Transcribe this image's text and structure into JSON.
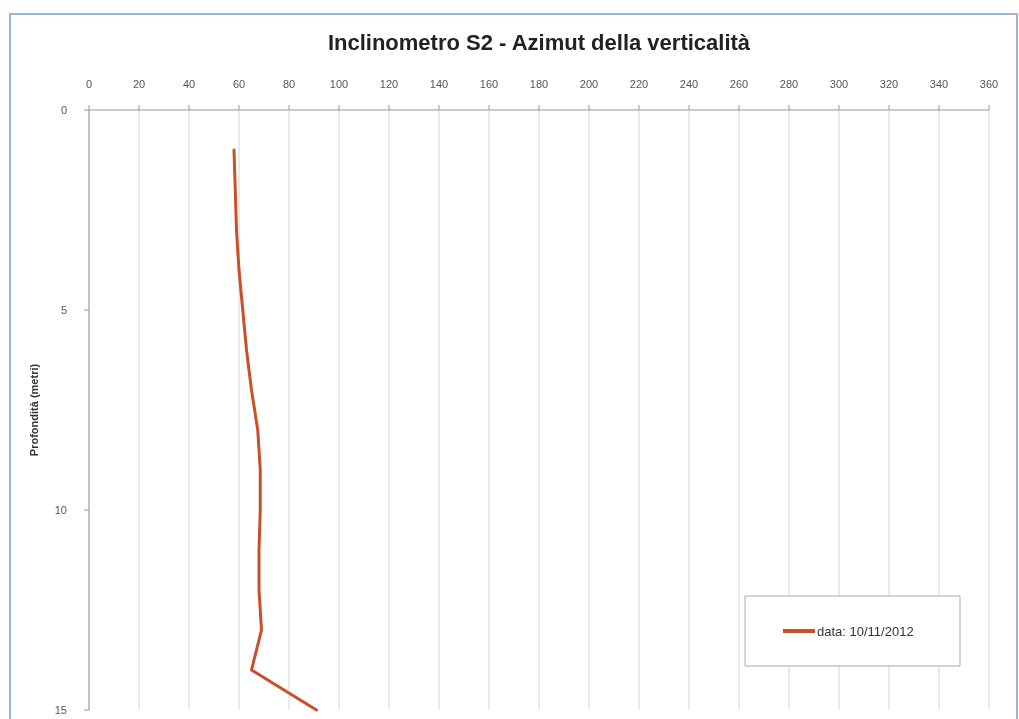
{
  "chart_data": {
    "type": "line",
    "title": "Inclinometro  S2 - Azimut della verticalità",
    "ylabel": "Profondità (metri)",
    "series": [
      {
        "name": "data: 10/11/2012",
        "color": "#c8502a",
        "x": [
          58,
          58.5,
          59,
          60,
          61.5,
          63,
          65,
          67.5,
          68.5,
          68.5,
          68,
          68,
          69,
          65,
          91
        ],
        "values": [
          1,
          2,
          3,
          4,
          5,
          6,
          7,
          8,
          9,
          10,
          11,
          12,
          13,
          14,
          15
        ]
      }
    ],
    "xlim": [
      0,
      360
    ],
    "xticks": [
      0,
      20,
      40,
      60,
      80,
      100,
      120,
      140,
      160,
      180,
      200,
      220,
      240,
      260,
      280,
      300,
      320,
      340,
      360
    ],
    "ylim": [
      15,
      0
    ],
    "yticks": [
      0,
      5,
      10,
      15
    ],
    "grid": "x",
    "legend": "bottom right",
    "marker": "none",
    "line_style": "solid"
  }
}
